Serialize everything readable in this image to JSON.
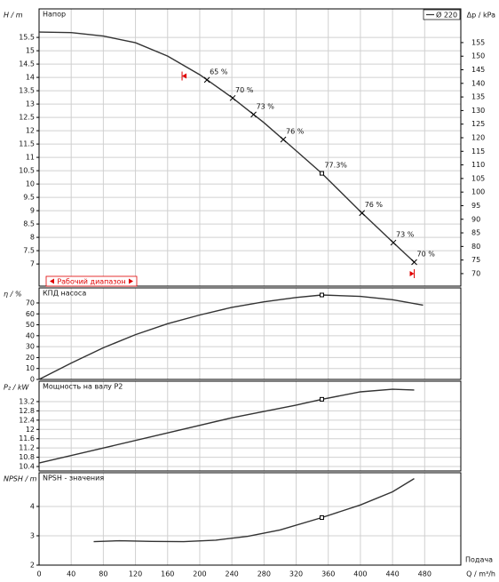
{
  "chart_data": [
    {
      "type": "line",
      "title": "Напор",
      "ylabel": "H / m",
      "y2label": "Δp / kPa",
      "xlim": [
        0,
        525
      ],
      "ylim": [
        6.17,
        16.57
      ],
      "yticks": [
        7,
        7.5,
        8,
        8.5,
        9,
        9.5,
        10,
        10.5,
        11,
        11.5,
        12,
        12.5,
        13,
        13.5,
        14,
        14.5,
        15,
        15.5
      ],
      "y2lim": [
        65.4,
        167.4
      ],
      "y2ticks": [
        70,
        75,
        80,
        85,
        90,
        95,
        100,
        105,
        110,
        115,
        120,
        125,
        130,
        135,
        140,
        145,
        150,
        155
      ],
      "grid": true,
      "legend": "upper right",
      "series": [
        {
          "name": "Ø 220",
          "color": "#333333",
          "x": [
            0,
            40,
            80,
            120,
            160,
            200,
            240,
            280,
            320,
            352,
            400,
            440,
            467
          ],
          "values": [
            15.7,
            15.68,
            15.55,
            15.3,
            14.8,
            14.1,
            13.25,
            12.3,
            11.25,
            10.4,
            8.97,
            7.83,
            7.07
          ]
        }
      ],
      "markers": {
        "x": [
          209,
          241,
          267,
          304,
          352,
          402,
          441,
          467
        ],
        "labels": [
          "65 %",
          "70 %",
          "73 %",
          "76 %",
          "77.3%",
          "76 %",
          "73 %",
          "70 %"
        ],
        "shapes": [
          "x",
          "x",
          "x",
          "x",
          "square",
          "x",
          "x",
          "x"
        ]
      },
      "range": {
        "label": "Рабочий диапазон",
        "x": [
          178,
          467
        ],
        "color": "#e00000"
      }
    },
    {
      "type": "line",
      "title": "КПД насоса",
      "ylabel": "η / %",
      "xlim": [
        0,
        525
      ],
      "ylim": [
        0,
        83.8
      ],
      "yticks": [
        0,
        10,
        20,
        30,
        40,
        50,
        60,
        70
      ],
      "grid": true,
      "series": [
        {
          "color": "#333333",
          "x": [
            0,
            40,
            80,
            120,
            160,
            200,
            240,
            280,
            320,
            352,
            400,
            440,
            478
          ],
          "values": [
            0,
            15,
            29,
            41,
            51,
            59,
            66,
            71,
            75,
            77.3,
            76,
            73,
            68
          ]
        }
      ],
      "point_x": 352
    },
    {
      "type": "line",
      "title": "Мощность на валу P2",
      "ylabel": "P₂ / kW",
      "xlim": [
        0,
        525
      ],
      "ylim": [
        10.21,
        14.08
      ],
      "yticks": [
        10.4,
        10.8,
        11.2,
        11.6,
        12,
        12.4,
        12.8,
        13.2
      ],
      "grid": true,
      "series": [
        {
          "color": "#333333",
          "x": [
            0,
            80,
            160,
            240,
            320,
            352,
            400,
            440,
            467
          ],
          "values": [
            10.55,
            11.2,
            11.85,
            12.5,
            13.05,
            13.3,
            13.62,
            13.73,
            13.7
          ]
        }
      ],
      "point_x": 352
    },
    {
      "type": "line",
      "title": "NPSH - значения",
      "ylabel": "NPSH / m",
      "xlabel": "Q / m³/h",
      "x_title": "Подача",
      "xlim": [
        0,
        525
      ],
      "ylim": [
        2,
        5.15
      ],
      "yticks": [
        2,
        3,
        4
      ],
      "grid": true,
      "xticks": [
        0,
        40,
        80,
        120,
        160,
        200,
        240,
        280,
        320,
        360,
        400,
        440,
        480
      ],
      "series": [
        {
          "color": "#333333",
          "x": [
            68,
            100,
            140,
            180,
            220,
            260,
            300,
            352,
            400,
            440,
            467
          ],
          "values": [
            2.8,
            2.83,
            2.81,
            2.8,
            2.85,
            2.98,
            3.2,
            3.62,
            4.05,
            4.5,
            4.95
          ]
        }
      ],
      "point_x": 352
    }
  ]
}
